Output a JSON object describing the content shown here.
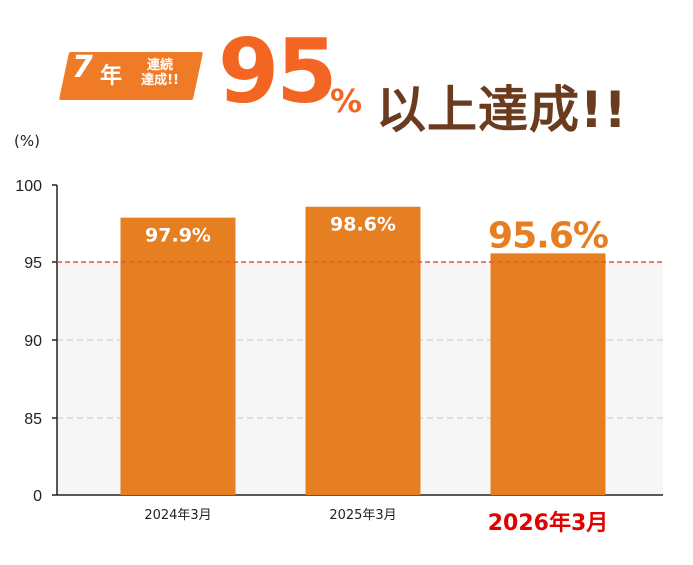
{
  "headline": {
    "badge_num": "7",
    "badge_unit": "年",
    "badge_text": "連続\n達成!!",
    "big_num": "95",
    "big_pct": "%",
    "big_rest": "以上達成!!"
  },
  "colors": {
    "bar": "#e67e22",
    "threshold": "#e8572e",
    "highlight_label": "#e00000",
    "headline": "#f26522"
  },
  "chart_data": {
    "type": "bar",
    "categories": [
      "2024年3月",
      "2025年3月",
      "2026年3月"
    ],
    "values": [
      97.9,
      98.6,
      95.6
    ],
    "value_labels": [
      "97.9%",
      "98.6%",
      "95.6%"
    ],
    "ylabel": "(%)",
    "yticks": [
      "100",
      "95",
      "90",
      "85",
      "0"
    ],
    "broken_axis": true,
    "reference_line": 95,
    "highlight_index": 2
  }
}
